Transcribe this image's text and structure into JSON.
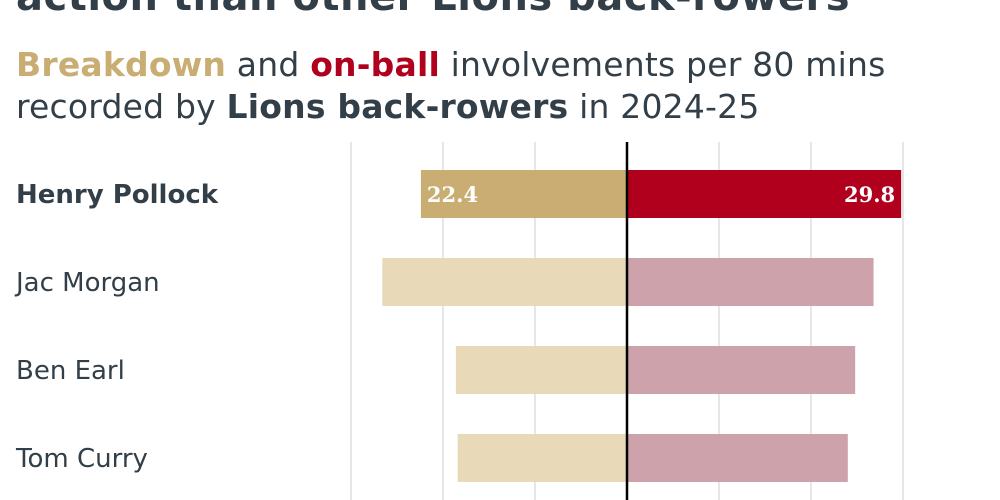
{
  "title": "action than other Lions back-rowers",
  "subtitle": {
    "part1_highlight": "Breakdown",
    "part2": " and ",
    "part3_highlight": "on-ball",
    "part4": " involvements per 80 mins",
    "part5": "recorded by ",
    "part6_bold": "Lions back-rowers",
    "part7": " in 2024-25"
  },
  "colors": {
    "breakdown_highlight": "#c9ad72",
    "breakdown_muted": "#e8d9b8",
    "onball_highlight": "#b0001e",
    "onball_muted": "#cda2aa",
    "text": "#333f48",
    "grid": "#e6e6e6",
    "axis": "#000000"
  },
  "chart_data": {
    "type": "bar",
    "orientation": "diverging-horizontal",
    "categories": [
      "Henry Pollock",
      "Jac Morgan",
      "Ben Earl",
      "Tom Curry"
    ],
    "highlighted_category": "Henry Pollock",
    "series": [
      {
        "name": "Breakdown",
        "values": [
          22.4,
          26.6,
          18.6,
          18.4
        ]
      },
      {
        "name": "On-ball",
        "values": [
          29.8,
          26.8,
          24.8,
          24.0
        ]
      }
    ],
    "data_labels": [
      "22.4",
      "29.8"
    ],
    "grid": true,
    "center_line": true
  }
}
